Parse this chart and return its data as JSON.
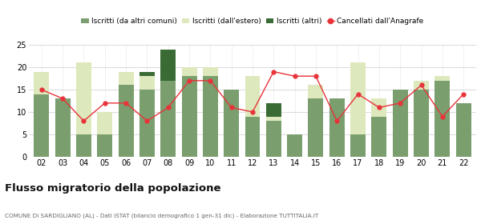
{
  "years": [
    "02",
    "03",
    "04",
    "05",
    "06",
    "07",
    "08",
    "09",
    "10",
    "11",
    "12",
    "13",
    "14",
    "15",
    "16",
    "17",
    "18",
    "19",
    "20",
    "21",
    "22"
  ],
  "iscritti_comuni": [
    14,
    13,
    5,
    5,
    16,
    15,
    17,
    18,
    18,
    15,
    9,
    8,
    5,
    13,
    13,
    5,
    9,
    15,
    15,
    17,
    12
  ],
  "iscritti_estero": [
    5,
    0,
    16,
    5,
    3,
    3,
    0,
    2,
    2,
    0,
    9,
    1,
    0,
    3,
    0,
    16,
    4,
    0,
    2,
    1,
    0
  ],
  "iscritti_altri": [
    0,
    0,
    0,
    0,
    0,
    1,
    7,
    0,
    0,
    0,
    0,
    3,
    0,
    0,
    0,
    0,
    0,
    0,
    0,
    0,
    0
  ],
  "cancellati": [
    15,
    13,
    8,
    12,
    12,
    8,
    11,
    17,
    17,
    11,
    10,
    19,
    18,
    18,
    8,
    14,
    11,
    12,
    16,
    9,
    14
  ],
  "color_comuni": "#7a9e6e",
  "color_estero": "#dde8bc",
  "color_altri": "#3a6b35",
  "color_cancellati": "#e8333a",
  "legend_labels": [
    "Iscritti (da altri comuni)",
    "Iscritti (dall'estero)",
    "Iscritti (altri)",
    "Cancellati dall'Anagrafe"
  ],
  "title": "Flusso migratorio della popolazione",
  "subtitle": "COMUNE DI SARDIGLIANO (AL) - Dati ISTAT (bilancio demografico 1 gen-31 dic) - Elaborazione TUTTITALIA.IT",
  "ylim": [
    0,
    25
  ],
  "yticks": [
    0,
    5,
    10,
    15,
    20,
    25
  ],
  "background_color": "#ffffff",
  "grid_color": "#cccccc"
}
